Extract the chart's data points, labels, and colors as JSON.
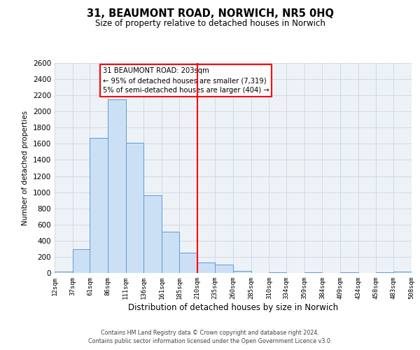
{
  "title": "31, BEAUMONT ROAD, NORWICH, NR5 0HQ",
  "subtitle": "Size of property relative to detached houses in Norwich",
  "xlabel": "Distribution of detached houses by size in Norwich",
  "ylabel": "Number of detached properties",
  "bin_edges": [
    12,
    37,
    61,
    86,
    111,
    136,
    161,
    185,
    210,
    235,
    260,
    285,
    310,
    334,
    359,
    384,
    409,
    434,
    458,
    483,
    508
  ],
  "bin_counts": [
    20,
    295,
    1670,
    2150,
    1610,
    960,
    510,
    255,
    130,
    100,
    30,
    0,
    10,
    0,
    5,
    0,
    5,
    0,
    5,
    20
  ],
  "bar_facecolor": "#cce0f5",
  "bar_edgecolor": "#5b9bd5",
  "vline_x": 210,
  "vline_color": "red",
  "vline_lw": 1.5,
  "ylim": [
    0,
    2600
  ],
  "yticks": [
    0,
    200,
    400,
    600,
    800,
    1000,
    1200,
    1400,
    1600,
    1800,
    2000,
    2200,
    2400,
    2600
  ],
  "annotation_title": "31 BEAUMONT ROAD: 203sqm",
  "annotation_line1": "← 95% of detached houses are smaller (7,319)",
  "annotation_line2": "5% of semi-detached houses are larger (404) →",
  "footer_line1": "Contains HM Land Registry data © Crown copyright and database right 2024.",
  "footer_line2": "Contains public sector information licensed under the Open Government Licence v3.0.",
  "tick_labels": [
    "12sqm",
    "37sqm",
    "61sqm",
    "86sqm",
    "111sqm",
    "136sqm",
    "161sqm",
    "185sqm",
    "210sqm",
    "235sqm",
    "260sqm",
    "285sqm",
    "310sqm",
    "334sqm",
    "359sqm",
    "384sqm",
    "409sqm",
    "434sqm",
    "458sqm",
    "483sqm",
    "508sqm"
  ],
  "grid_color": "#c8d0d8",
  "background_color": "#edf2f7"
}
